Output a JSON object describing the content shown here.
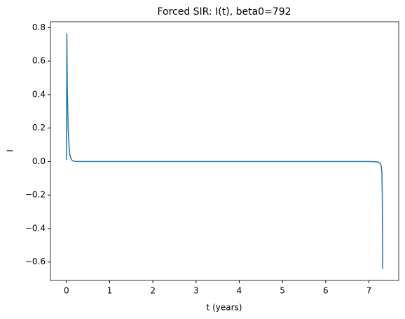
{
  "chart_data": {
    "type": "line",
    "title": "Forced SIR: I(t), beta0=792",
    "xlabel": "t (years)",
    "ylabel": "I",
    "x": [
      0,
      0.01,
      0.02,
      0.04,
      0.06,
      0.08,
      0.1,
      0.13,
      0.17,
      0.25,
      1,
      2,
      3,
      4,
      5,
      6,
      7,
      7.2,
      7.26,
      7.28,
      7.3,
      7.31,
      7.32
    ],
    "series": [
      {
        "name": "I",
        "color": "#1f77b4",
        "values": [
          0.01,
          0.765,
          0.45,
          0.2,
          0.09,
          0.04,
          0.02,
          0.008,
          0.002,
          0,
          0,
          0,
          0,
          0,
          0,
          0,
          0,
          -0.002,
          -0.01,
          -0.02,
          -0.06,
          -0.2,
          -0.64
        ]
      }
    ],
    "xlim": [
      -0.37,
      7.69
    ],
    "ylim": [
      -0.71,
      0.835
    ],
    "xticks": [
      0,
      1,
      2,
      3,
      4,
      5,
      6,
      7
    ],
    "yticks": [
      {
        "value": -0.6,
        "label": "−0.6"
      },
      {
        "value": -0.4,
        "label": "−0.4"
      },
      {
        "value": -0.2,
        "label": "−0.2"
      },
      {
        "value": 0,
        "label": "0.0"
      },
      {
        "value": 0.2,
        "label": "0.2"
      },
      {
        "value": 0.4,
        "label": "0.4"
      },
      {
        "value": 0.6,
        "label": "0.6"
      },
      {
        "value": 0.8,
        "label": "0.8"
      }
    ],
    "grid": false
  }
}
